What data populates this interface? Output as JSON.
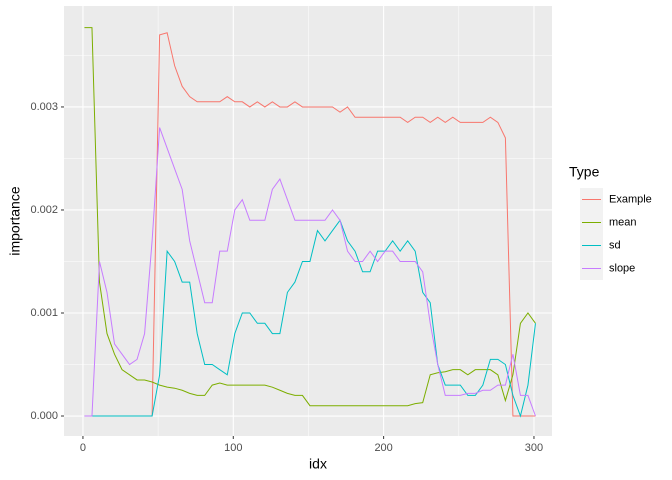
{
  "chart_data": {
    "type": "line",
    "x_label": "idx",
    "y_label": "importance",
    "legend_title": "Type",
    "x": [
      1,
      6,
      11,
      16,
      21,
      26,
      31,
      36,
      41,
      46,
      51,
      56,
      61,
      66,
      71,
      76,
      81,
      86,
      91,
      96,
      101,
      106,
      111,
      116,
      121,
      126,
      131,
      136,
      141,
      146,
      151,
      156,
      161,
      166,
      171,
      176,
      181,
      186,
      191,
      196,
      201,
      206,
      211,
      216,
      221,
      226,
      231,
      236,
      241,
      246,
      251,
      256,
      261,
      266,
      271,
      276,
      281,
      286,
      291,
      296,
      301
    ],
    "series": [
      {
        "name": "Example",
        "color": "#F8766D",
        "values": [
          0,
          0,
          0,
          0,
          0,
          0,
          0,
          0,
          0,
          0,
          0.0037,
          0.00372,
          0.0034,
          0.0032,
          0.0031,
          0.00305,
          0.00305,
          0.00305,
          0.00305,
          0.0031,
          0.00305,
          0.00305,
          0.003,
          0.00305,
          0.003,
          0.00305,
          0.003,
          0.003,
          0.00305,
          0.003,
          0.003,
          0.003,
          0.003,
          0.003,
          0.00295,
          0.003,
          0.0029,
          0.0029,
          0.0029,
          0.0029,
          0.0029,
          0.0029,
          0.0029,
          0.00285,
          0.0029,
          0.0029,
          0.00285,
          0.0029,
          0.00285,
          0.0029,
          0.00285,
          0.00285,
          0.00285,
          0.00285,
          0.0029,
          0.00285,
          0.0027,
          0,
          0,
          0,
          0
        ]
      },
      {
        "name": "mean",
        "color": "#7CAE00",
        "values": [
          0.00377,
          0.00377,
          0.0013,
          0.0008,
          0.0006,
          0.00045,
          0.0004,
          0.00035,
          0.00035,
          0.00033,
          0.0003,
          0.00028,
          0.00027,
          0.00025,
          0.00022,
          0.0002,
          0.0002,
          0.0003,
          0.00032,
          0.0003,
          0.0003,
          0.0003,
          0.0003,
          0.0003,
          0.0003,
          0.00028,
          0.00025,
          0.00022,
          0.0002,
          0.0002,
          0.0001,
          0.0001,
          0.0001,
          0.0001,
          0.0001,
          0.0001,
          0.0001,
          0.0001,
          0.0001,
          0.0001,
          0.0001,
          0.0001,
          0.0001,
          0.0001,
          0.00012,
          0.00013,
          0.0004,
          0.00042,
          0.00043,
          0.00045,
          0.00045,
          0.0004,
          0.00045,
          0.00045,
          0.00045,
          0.0004,
          0.00015,
          0.0004,
          0.0009,
          0.001,
          0.0009
        ]
      },
      {
        "name": "sd",
        "color": "#00BFC4",
        "values": [
          0,
          0,
          0,
          0,
          0,
          0,
          0,
          0,
          0,
          0,
          0.0004,
          0.0016,
          0.0015,
          0.0013,
          0.0013,
          0.0008,
          0.0005,
          0.0005,
          0.00045,
          0.0004,
          0.0008,
          0.001,
          0.001,
          0.0009,
          0.0009,
          0.0008,
          0.0008,
          0.0012,
          0.0013,
          0.0015,
          0.0015,
          0.0018,
          0.0017,
          0.0018,
          0.0019,
          0.0017,
          0.0016,
          0.0014,
          0.0014,
          0.0016,
          0.0016,
          0.0017,
          0.0016,
          0.0017,
          0.0016,
          0.0012,
          0.0011,
          0.0005,
          0.0003,
          0.0003,
          0.0003,
          0.0002,
          0.0002,
          0.0003,
          0.00055,
          0.00055,
          0.0005,
          0.0002,
          0,
          0.0003,
          0.0009
        ]
      },
      {
        "name": "slope",
        "color": "#C77CFF",
        "values": [
          0,
          0,
          0.0015,
          0.0012,
          0.0007,
          0.0006,
          0.0005,
          0.00055,
          0.0008,
          0.0017,
          0.0028,
          0.0026,
          0.0024,
          0.0022,
          0.0017,
          0.0014,
          0.0011,
          0.0011,
          0.0016,
          0.0016,
          0.002,
          0.0021,
          0.0019,
          0.0019,
          0.0019,
          0.0022,
          0.0023,
          0.0021,
          0.0019,
          0.0019,
          0.0019,
          0.0019,
          0.0019,
          0.002,
          0.0019,
          0.0016,
          0.0015,
          0.0015,
          0.0016,
          0.0015,
          0.0016,
          0.0016,
          0.0015,
          0.0015,
          0.0015,
          0.0014,
          0.0009,
          0.0005,
          0.0002,
          0.0002,
          0.0002,
          0.00022,
          0.00022,
          0.00025,
          0.00025,
          0.0003,
          0.0003,
          0.0006,
          0.0002,
          0.0002,
          0
        ]
      }
    ],
    "xlim": [
      -12.6,
      312
    ],
    "ylim": [
      -0.000194,
      0.00398
    ],
    "xticks": [
      0,
      100,
      200,
      300
    ],
    "yticks": [
      {
        "value": 0,
        "label": "0.000"
      },
      0.001,
      0.002,
      0.003
    ],
    "xminor": [
      50,
      150,
      250
    ],
    "yminor": [
      0.0005,
      0.0015,
      0.0025,
      0.0035
    ],
    "grid": true,
    "legend_position": "right"
  }
}
